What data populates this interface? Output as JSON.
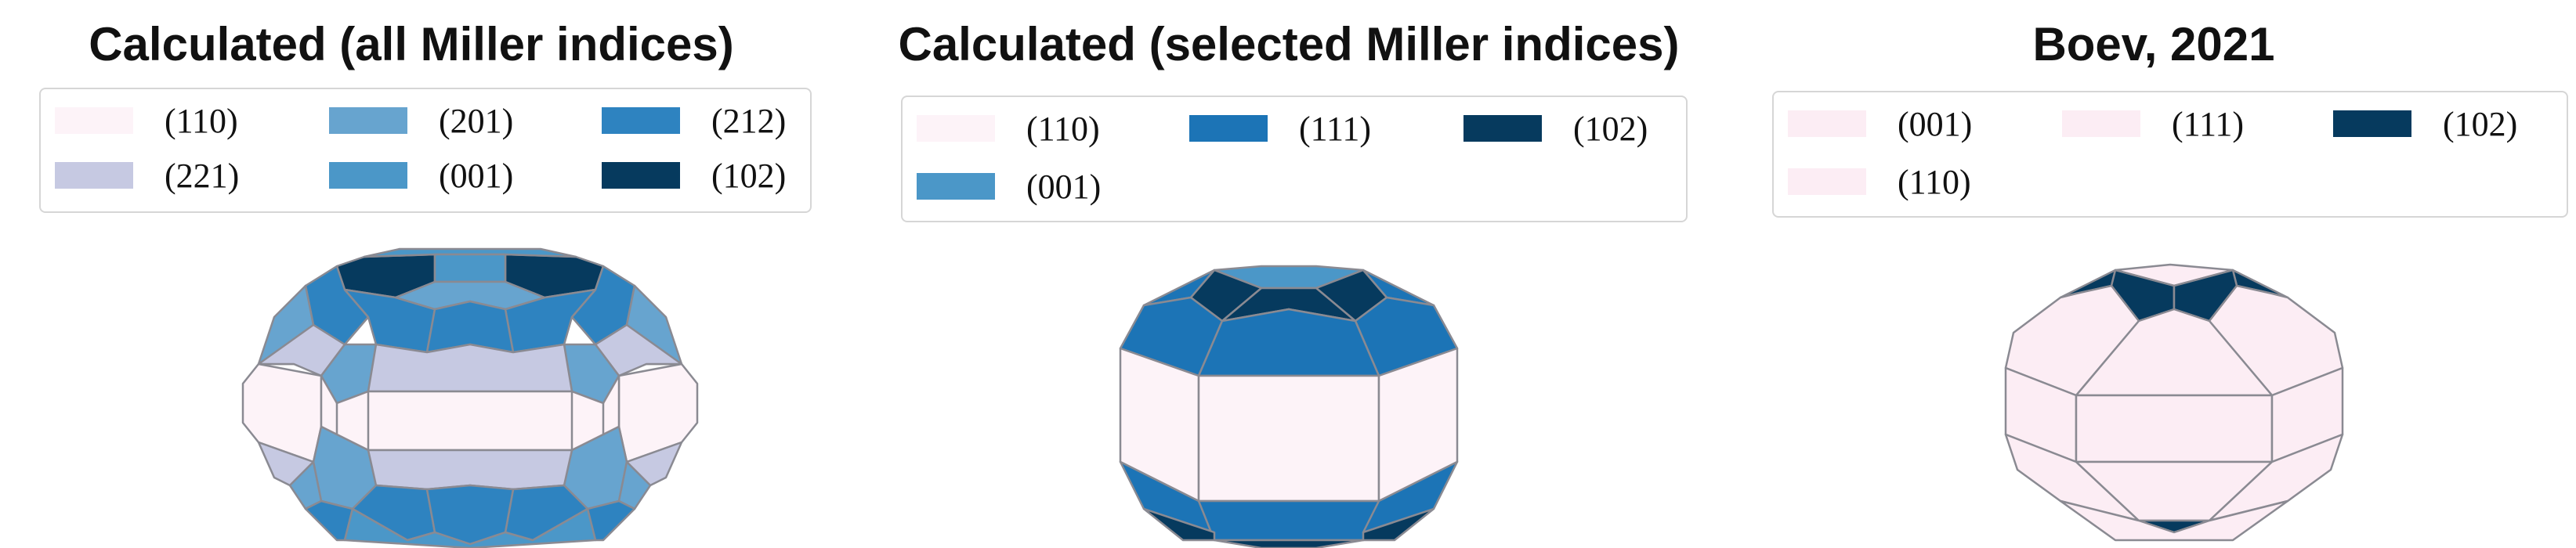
{
  "colors": {
    "f110": "#fdf3f8",
    "f221": "#c6c9e2",
    "f201": "#67a4cf",
    "f001": "#4b97c8",
    "f212": "#2e83c0",
    "f111": "#1c74b6",
    "f102": "#063a5e",
    "boev001": "#fcedf4",
    "boev111": "#fcedf4",
    "edge": "#8a8a92"
  },
  "panels": [
    {
      "title": "Calculated (all Miller indices)",
      "legend": [
        {
          "label": "(110)",
          "color": "#fdf3f8"
        },
        {
          "label": "(201)",
          "color": "#67a4cf"
        },
        {
          "label": "(212)",
          "color": "#2e83c0"
        },
        {
          "label": "(221)",
          "color": "#c6c9e2"
        },
        {
          "label": "(001)",
          "color": "#4b97c8"
        },
        {
          "label": "(102)",
          "color": "#063a5e"
        }
      ]
    },
    {
      "title": "Calculated (selected Miller indices)",
      "legend": [
        {
          "label": "(110)",
          "color": "#fdf3f8"
        },
        {
          "label": "(111)",
          "color": "#1c74b6"
        },
        {
          "label": "(102)",
          "color": "#063a5e"
        },
        {
          "label": "(001)",
          "color": "#4b97c8"
        }
      ]
    },
    {
      "title": "Boev, 2021",
      "legend": [
        {
          "label": "(001)",
          "color": "#fcedf4"
        },
        {
          "label": "(111)",
          "color": "#fcedf4"
        },
        {
          "label": "(102)",
          "color": "#063a5e"
        },
        {
          "label": "(110)",
          "color": "#fcedf4"
        }
      ]
    }
  ]
}
